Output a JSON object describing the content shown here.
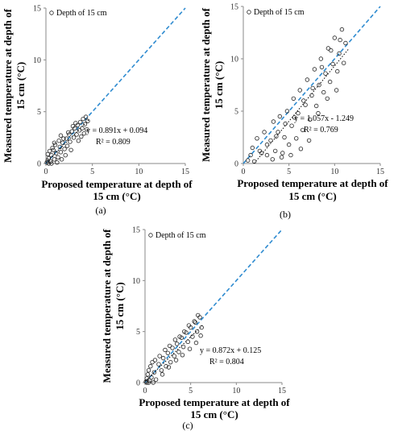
{
  "chart_data": [
    {
      "type": "scatter",
      "panel_label": "(a)",
      "legend": "Depth of 15 cm",
      "xlabel": [
        "Proposed temperature at depth of",
        "15 cm (°C)"
      ],
      "ylabel": [
        "Measured temperature at depth of",
        "15 cm (°C)"
      ],
      "xlim": [
        0,
        15
      ],
      "ylim": [
        0,
        15
      ],
      "xticks": [
        "0",
        "5",
        "10",
        "15"
      ],
      "yticks": [
        "0",
        "5",
        "10",
        "15"
      ],
      "equation": "y = 0.891x + 0.094",
      "r2": "R² = 0.809",
      "trendline": {
        "slope": 0.891,
        "intercept": 0.094
      },
      "reference_line": {
        "slope": 1,
        "intercept": 0
      },
      "points": [
        [
          0.1,
          0.1
        ],
        [
          0.2,
          0.3
        ],
        [
          0.3,
          0.5
        ],
        [
          0.2,
          0.9
        ],
        [
          0.5,
          0.2
        ],
        [
          0.6,
          0.8
        ],
        [
          0.8,
          1.3
        ],
        [
          0.9,
          0.4
        ],
        [
          1.1,
          1.0
        ],
        [
          1.3,
          0.6
        ],
        [
          1.5,
          1.6
        ],
        [
          1.6,
          1.1
        ],
        [
          1.8,
          2.0
        ],
        [
          2.0,
          1.4
        ],
        [
          2.2,
          2.4
        ],
        [
          2.3,
          1.7
        ],
        [
          2.5,
          2.8
        ],
        [
          2.6,
          2.1
        ],
        [
          2.8,
          3.1
        ],
        [
          3.0,
          2.5
        ],
        [
          3.1,
          3.4
        ],
        [
          3.3,
          2.8
        ],
        [
          3.4,
          3.7
        ],
        [
          3.6,
          3.2
        ],
        [
          3.7,
          4.0
        ],
        [
          3.9,
          3.4
        ],
        [
          4.0,
          4.3
        ],
        [
          4.2,
          3.8
        ],
        [
          4.3,
          4.5
        ],
        [
          4.5,
          4.1
        ],
        [
          4.4,
          3.3
        ],
        [
          3.8,
          2.6
        ],
        [
          3.2,
          3.9
        ],
        [
          2.9,
          3.6
        ],
        [
          2.4,
          3.0
        ],
        [
          1.9,
          2.4
        ],
        [
          1.4,
          2.2
        ],
        [
          1.0,
          1.8
        ],
        [
          0.7,
          1.5
        ],
        [
          0.4,
          1.2
        ],
        [
          0.3,
          0.0
        ],
        [
          0.6,
          0.0
        ],
        [
          1.2,
          0.1
        ],
        [
          1.7,
          0.4
        ],
        [
          2.1,
          0.8
        ],
        [
          2.7,
          1.3
        ],
        [
          3.5,
          2.2
        ],
        [
          4.1,
          2.9
        ],
        [
          0.9,
          2.0
        ],
        [
          1.6,
          2.7
        ]
      ]
    },
    {
      "type": "scatter",
      "panel_label": "(b)",
      "legend": "Depth of 15 cm",
      "xlabel": [
        "Proposed temperature at depth of",
        "15 cm (°C)"
      ],
      "ylabel": [
        "Measured temperature at depth of",
        "15 cm (°C)"
      ],
      "xlim": [
        0,
        15
      ],
      "ylim": [
        0,
        15
      ],
      "xticks": [
        "0",
        "5",
        "10",
        "15"
      ],
      "yticks": [
        "0",
        "5",
        "10",
        "15"
      ],
      "equation": "y = 1.057x - 1.249",
      "r2": "R² = 0.769",
      "trendline": {
        "slope": 1.057,
        "intercept": -1.249
      },
      "reference_line": {
        "slope": 1,
        "intercept": 0
      },
      "points": [
        [
          0.5,
          0.3
        ],
        [
          1.0,
          1.5
        ],
        [
          1.2,
          0.2
        ],
        [
          1.5,
          2.4
        ],
        [
          2.0,
          1.0
        ],
        [
          2.3,
          3.0
        ],
        [
          2.6,
          0.8
        ],
        [
          3.0,
          2.2
        ],
        [
          3.3,
          4.0
        ],
        [
          3.5,
          1.2
        ],
        [
          3.8,
          3.0
        ],
        [
          4.0,
          4.5
        ],
        [
          4.2,
          0.6
        ],
        [
          4.5,
          2.5
        ],
        [
          4.8,
          5.0
        ],
        [
          5.0,
          1.8
        ],
        [
          5.3,
          3.6
        ],
        [
          5.5,
          6.2
        ],
        [
          5.8,
          2.4
        ],
        [
          6.0,
          4.8
        ],
        [
          6.2,
          7.0
        ],
        [
          6.5,
          3.2
        ],
        [
          6.8,
          5.6
        ],
        [
          7.0,
          8.0
        ],
        [
          7.3,
          4.2
        ],
        [
          7.5,
          6.5
        ],
        [
          7.8,
          9.0
        ],
        [
          8.0,
          5.5
        ],
        [
          8.3,
          7.5
        ],
        [
          8.5,
          10.0
        ],
        [
          8.8,
          6.8
        ],
        [
          9.0,
          8.6
        ],
        [
          9.3,
          11.0
        ],
        [
          9.5,
          7.8
        ],
        [
          9.8,
          9.5
        ],
        [
          10.0,
          12.0
        ],
        [
          10.3,
          8.8
        ],
        [
          10.5,
          10.5
        ],
        [
          10.8,
          12.8
        ],
        [
          11.0,
          9.6
        ],
        [
          11.2,
          11.5
        ],
        [
          10.6,
          11.8
        ],
        [
          9.6,
          10.8
        ],
        [
          8.6,
          9.2
        ],
        [
          7.6,
          7.2
        ],
        [
          6.6,
          6.0
        ],
        [
          5.6,
          4.4
        ],
        [
          4.6,
          3.8
        ],
        [
          3.6,
          2.6
        ],
        [
          2.6,
          1.8
        ],
        [
          1.8,
          1.2
        ],
        [
          0.8,
          0.8
        ],
        [
          6.3,
          1.4
        ],
        [
          7.2,
          2.2
        ],
        [
          8.2,
          4.8
        ],
        [
          9.2,
          6.2
        ],
        [
          10.2,
          7.0
        ],
        [
          4.3,
          1.0
        ],
        [
          5.2,
          0.8
        ],
        [
          3.2,
          0.4
        ]
      ]
    },
    {
      "type": "scatter",
      "panel_label": "(c)",
      "legend": "Depth of 15 cm",
      "xlabel": [
        "Proposed temperature at depth of",
        "15 cm (°C)"
      ],
      "ylabel": [
        "Measured temperature at depth of",
        "15 cm (°C)"
      ],
      "xlim": [
        0,
        15
      ],
      "ylim": [
        0,
        15
      ],
      "xticks": [
        "0",
        "5",
        "10",
        "15"
      ],
      "yticks": [
        "0",
        "5",
        "10",
        "15"
      ],
      "equation": "y = 0.872x + 0.125",
      "r2": "R² = 0.804",
      "trendline": {
        "slope": 0.872,
        "intercept": 0.125
      },
      "reference_line": {
        "slope": 1,
        "intercept": 0
      },
      "points": [
        [
          0.1,
          0.1
        ],
        [
          0.2,
          0.4
        ],
        [
          0.3,
          0.8
        ],
        [
          0.4,
          1.2
        ],
        [
          0.5,
          0.2
        ],
        [
          0.6,
          1.6
        ],
        [
          0.7,
          0.5
        ],
        [
          0.8,
          2.0
        ],
        [
          1.0,
          1.0
        ],
        [
          1.2,
          0.3
        ],
        [
          1.5,
          1.8
        ],
        [
          1.8,
          1.2
        ],
        [
          2.0,
          2.4
        ],
        [
          2.3,
          1.6
        ],
        [
          2.5,
          2.9
        ],
        [
          2.8,
          2.0
        ],
        [
          3.0,
          3.4
        ],
        [
          3.2,
          2.6
        ],
        [
          3.5,
          3.8
        ],
        [
          3.7,
          3.0
        ],
        [
          4.0,
          4.4
        ],
        [
          4.2,
          3.5
        ],
        [
          4.5,
          4.9
        ],
        [
          4.7,
          4.0
        ],
        [
          5.0,
          5.4
        ],
        [
          5.2,
          4.5
        ],
        [
          5.5,
          5.9
        ],
        [
          5.7,
          5.0
        ],
        [
          6.0,
          6.4
        ],
        [
          6.2,
          5.4
        ],
        [
          5.8,
          6.6
        ],
        [
          5.4,
          6.0
        ],
        [
          4.8,
          5.6
        ],
        [
          4.3,
          5.0
        ],
        [
          3.8,
          4.5
        ],
        [
          3.3,
          4.2
        ],
        [
          2.7,
          3.6
        ],
        [
          2.2,
          3.2
        ],
        [
          1.6,
          2.6
        ],
        [
          1.1,
          2.2
        ],
        [
          6.1,
          4.6
        ],
        [
          5.6,
          3.9
        ],
        [
          4.9,
          3.3
        ],
        [
          4.1,
          2.7
        ],
        [
          3.4,
          2.2
        ],
        [
          2.6,
          1.5
        ],
        [
          1.9,
          0.8
        ],
        [
          0.9,
          0.0
        ],
        [
          0.4,
          0.0
        ],
        [
          0.2,
          0.0
        ]
      ]
    }
  ]
}
